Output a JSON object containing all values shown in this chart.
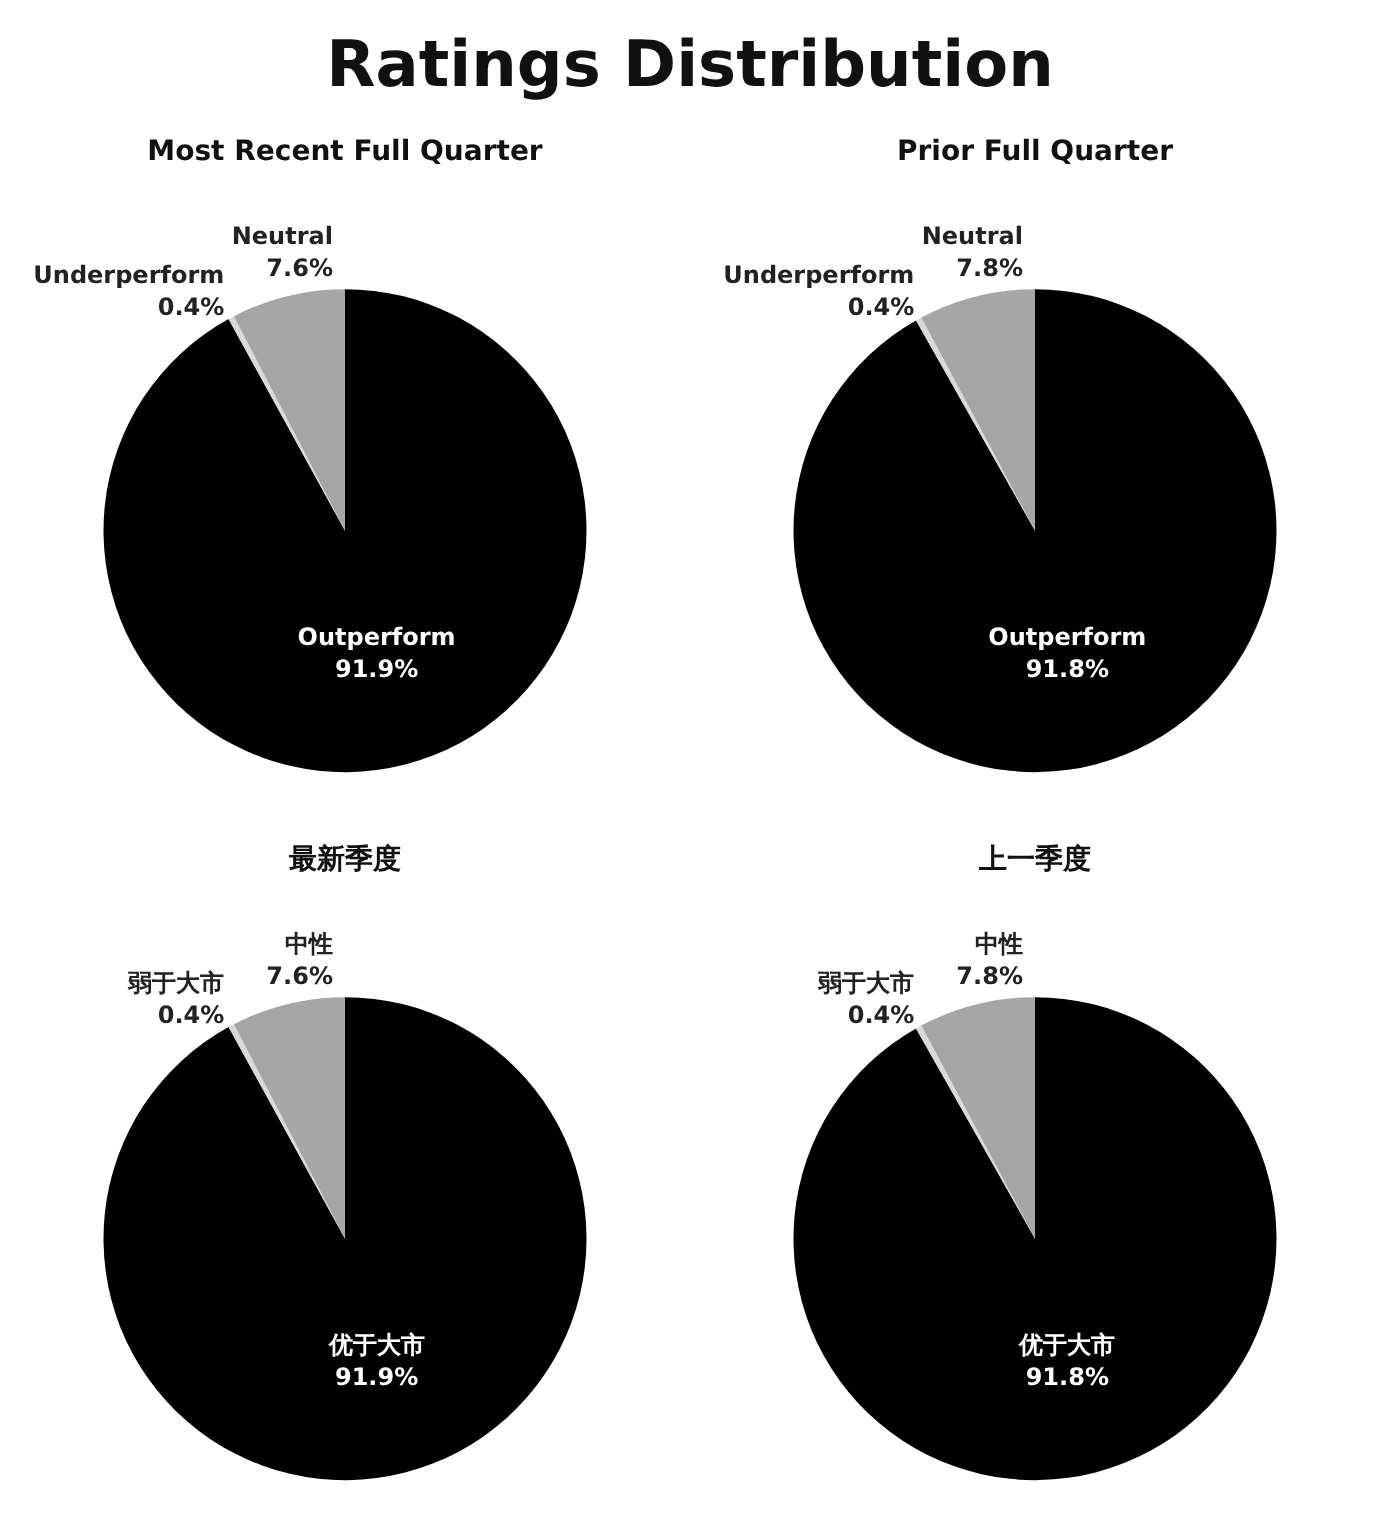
{
  "chart_data": [
    {
      "type": "pie",
      "title": "Ratings Distribution",
      "subtitle": "Most Recent Full Quarter",
      "categories": [
        "Outperform",
        "Underperform",
        "Neutral"
      ],
      "values": [
        91.9,
        0.4,
        7.6
      ],
      "colors": [
        "#000000",
        "#d9d9d9",
        "#a6a6a6"
      ],
      "value_labels": [
        "91.9%",
        "0.4%",
        "7.6%"
      ]
    },
    {
      "type": "pie",
      "title": "Prior Full Quarter",
      "categories": [
        "Outperform",
        "Underperform",
        "Neutral"
      ],
      "values": [
        91.8,
        0.4,
        7.8
      ],
      "colors": [
        "#000000",
        "#d9d9d9",
        "#a6a6a6"
      ],
      "value_labels": [
        "91.8%",
        "0.4%",
        "7.8%"
      ]
    },
    {
      "type": "pie",
      "title": "最新季度",
      "categories": [
        "优于大市",
        "弱于大市",
        "中性"
      ],
      "values": [
        91.9,
        0.4,
        7.6
      ],
      "colors": [
        "#000000",
        "#d9d9d9",
        "#a6a6a6"
      ],
      "value_labels": [
        "91.9%",
        "0.4%",
        "7.6%"
      ]
    },
    {
      "type": "pie",
      "title": "上一季度",
      "categories": [
        "优于大市",
        "弱于大市",
        "中性"
      ],
      "values": [
        91.8,
        0.4,
        7.8
      ],
      "colors": [
        "#000000",
        "#d9d9d9",
        "#a6a6a6"
      ],
      "value_labels": [
        "91.8%",
        "0.4%",
        "7.8%"
      ]
    }
  ]
}
